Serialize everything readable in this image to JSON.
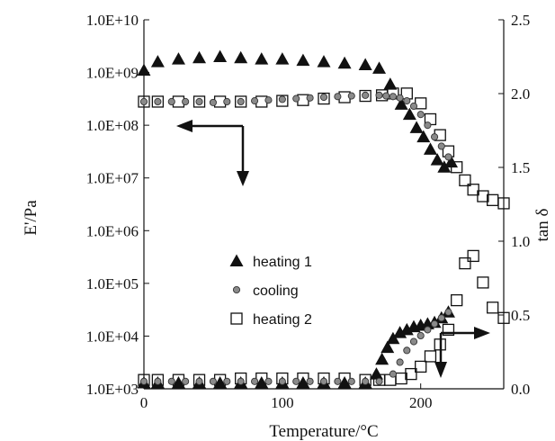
{
  "chart_data": {
    "type": "scatter",
    "xlabel": "Temperature/°C",
    "ylabel_left": "E'/Pa",
    "ylabel_right": "tan δ",
    "xlim": [
      0,
      260
    ],
    "x_ticks": [
      0,
      100,
      200
    ],
    "ylim_left": [
      1000,
      10000000000
    ],
    "y_scale_left": "log",
    "y_ticks_left": [
      "1.0E+03",
      "1.0E+04",
      "1.0E+05",
      "1.0E+06",
      "1.0E+07",
      "1.0E+08",
      "1.0E+09",
      "1.0E+10"
    ],
    "ylim_right": [
      0,
      2.5
    ],
    "y_ticks_right": [
      "0.0",
      "0.5",
      "1.0",
      "1.5",
      "2.0",
      "2.5"
    ],
    "grid": false,
    "legend_position": "center",
    "series": [
      {
        "name": "heating 1",
        "marker": "triangle",
        "storage_modulus": {
          "x": [
            0,
            10,
            25,
            40,
            55,
            70,
            85,
            100,
            115,
            130,
            145,
            160,
            170,
            178,
            186,
            192,
            197,
            202,
            207,
            212,
            217,
            222
          ],
          "y": [
            1100000000.0,
            1600000000.0,
            1800000000.0,
            1900000000.0,
            2000000000.0,
            1900000000.0,
            1800000000.0,
            1800000000.0,
            1700000000.0,
            1600000000.0,
            1500000000.0,
            1400000000.0,
            1200000000.0,
            600000000.0,
            250000000.0,
            160000000.0,
            90000000.0,
            60000000.0,
            35000000.0,
            22000000.0,
            16000000.0,
            20000000.0
          ]
        },
        "tan_delta": {
          "x": [
            0,
            10,
            25,
            40,
            55,
            70,
            85,
            100,
            115,
            130,
            145,
            160,
            168,
            172,
            176,
            180,
            185,
            190,
            195,
            200,
            205,
            210,
            215,
            220
          ],
          "y": [
            0.04,
            0.04,
            0.04,
            0.04,
            0.04,
            0.04,
            0.04,
            0.04,
            0.04,
            0.04,
            0.04,
            0.04,
            0.1,
            0.2,
            0.28,
            0.34,
            0.38,
            0.4,
            0.42,
            0.43,
            0.44,
            0.45,
            0.48,
            0.52
          ]
        }
      },
      {
        "name": "cooling",
        "marker": "circle",
        "storage_modulus": {
          "x": [
            0,
            10,
            20,
            30,
            40,
            50,
            60,
            70,
            80,
            90,
            100,
            110,
            120,
            130,
            140,
            150,
            160,
            170,
            175,
            180,
            185,
            190,
            195,
            200,
            205,
            210,
            215,
            220
          ],
          "y": [
            280000000.0,
            280000000.0,
            280000000.0,
            280000000.0,
            280000000.0,
            270000000.0,
            280000000.0,
            280000000.0,
            290000000.0,
            300000000.0,
            310000000.0,
            320000000.0,
            330000000.0,
            340000000.0,
            350000000.0,
            360000000.0,
            370000000.0,
            370000000.0,
            360000000.0,
            350000000.0,
            330000000.0,
            290000000.0,
            230000000.0,
            160000000.0,
            100000000.0,
            60000000.0,
            40000000.0,
            25000000.0
          ]
        },
        "tan_delta": {
          "x": [
            0,
            10,
            20,
            30,
            40,
            50,
            60,
            70,
            80,
            90,
            100,
            110,
            120,
            130,
            140,
            150,
            160,
            170,
            180,
            185,
            190,
            195,
            200,
            205,
            210,
            215,
            220
          ],
          "y": [
            0.05,
            0.05,
            0.05,
            0.05,
            0.05,
            0.05,
            0.05,
            0.05,
            0.05,
            0.05,
            0.05,
            0.05,
            0.05,
            0.05,
            0.05,
            0.05,
            0.05,
            0.05,
            0.1,
            0.18,
            0.26,
            0.32,
            0.36,
            0.4,
            0.44,
            0.48,
            0.52
          ]
        }
      },
      {
        "name": "heating 2",
        "marker": "square",
        "storage_modulus": {
          "x": [
            0,
            10,
            25,
            40,
            55,
            70,
            85,
            100,
            115,
            130,
            145,
            160,
            172,
            180,
            190,
            200,
            207,
            214,
            220,
            226,
            232,
            238,
            245,
            252,
            260
          ],
          "y": [
            280000000.0,
            280000000.0,
            280000000.0,
            280000000.0,
            280000000.0,
            280000000.0,
            280000000.0,
            290000000.0,
            300000000.0,
            320000000.0,
            340000000.0,
            360000000.0,
            370000000.0,
            400000000.0,
            400000000.0,
            260000000.0,
            130000000.0,
            65000000.0,
            32000000.0,
            16000000.0,
            9000000.0,
            6000000.0,
            4500000.0,
            3800000.0,
            3300000.0
          ]
        },
        "tan_delta": {
          "x": [
            0,
            10,
            25,
            40,
            55,
            70,
            85,
            100,
            115,
            130,
            145,
            160,
            170,
            178,
            186,
            193,
            200,
            207,
            214,
            220,
            226,
            232,
            238,
            245,
            252,
            260
          ],
          "y": [
            0.06,
            0.06,
            0.06,
            0.06,
            0.06,
            0.07,
            0.07,
            0.07,
            0.07,
            0.07,
            0.07,
            0.06,
            0.06,
            0.06,
            0.07,
            0.1,
            0.15,
            0.22,
            0.3,
            0.4,
            0.6,
            0.85,
            0.9,
            0.72,
            0.55,
            0.48
          ]
        }
      }
    ]
  }
}
